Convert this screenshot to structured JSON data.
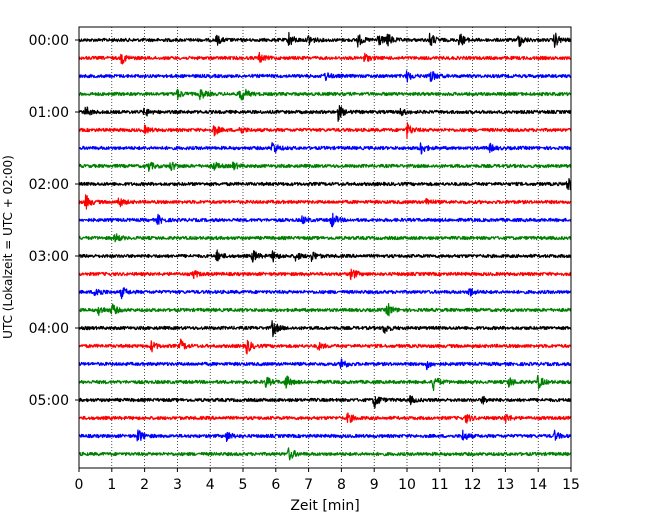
{
  "chart_data": {
    "type": "line",
    "title": "",
    "xlabel": "Zeit  [min]",
    "ylabel": "UTC (Lokalzeit = UTC + 02:00)",
    "xlim": [
      0,
      15
    ],
    "x_ticks": [
      0,
      1,
      2,
      3,
      4,
      5,
      6,
      7,
      8,
      9,
      10,
      11,
      12,
      13,
      14,
      15
    ],
    "x_tick_labels": [
      "0",
      "1",
      "2",
      "3",
      "4",
      "5",
      "6",
      "7",
      "8",
      "9",
      "10",
      "11",
      "12",
      "13",
      "14",
      "15"
    ],
    "y_tick_labels": [
      "00:00",
      "01:00",
      "02:00",
      "03:00",
      "04:00",
      "05:00"
    ],
    "y_tick_rows": [
      0,
      4,
      8,
      12,
      16,
      20
    ],
    "grid": "vertical dotted lines at each minute",
    "legend": "none",
    "row_colors": [
      "#000000",
      "#ff0000",
      "#0000ff",
      "#008000"
    ],
    "rows": [
      {
        "start": "00:00",
        "bursts": [
          [
            4.2,
            0.5
          ],
          [
            6.4,
            0.8
          ],
          [
            7.0,
            0.6
          ],
          [
            8.5,
            0.7
          ],
          [
            9.1,
            0.8
          ],
          [
            9.4,
            0.8
          ],
          [
            10.7,
            0.8
          ],
          [
            11.6,
            0.8
          ],
          [
            13.4,
            0.8
          ],
          [
            14.5,
            0.8
          ]
        ]
      },
      {
        "start": "00:15",
        "bursts": [
          [
            1.3,
            0.6
          ],
          [
            5.5,
            0.5
          ],
          [
            8.7,
            0.5
          ]
        ]
      },
      {
        "start": "00:30",
        "bursts": [
          [
            7.5,
            0.5
          ],
          [
            10.0,
            0.6
          ],
          [
            10.7,
            0.8
          ]
        ]
      },
      {
        "start": "00:45",
        "bursts": [
          [
            3.0,
            0.5
          ],
          [
            3.7,
            0.6
          ],
          [
            4.9,
            0.8
          ],
          [
            5.0,
            0.7
          ]
        ]
      },
      {
        "start": "01:00",
        "bursts": [
          [
            0.2,
            0.6
          ],
          [
            2.0,
            0.5
          ],
          [
            7.9,
            0.9
          ],
          [
            9.8,
            0.4
          ]
        ]
      },
      {
        "start": "01:15",
        "bursts": [
          [
            2.0,
            0.4
          ],
          [
            4.1,
            0.7
          ],
          [
            4.9,
            0.5
          ],
          [
            10.0,
            0.8
          ]
        ]
      },
      {
        "start": "01:30",
        "bursts": [
          [
            5.9,
            0.8
          ],
          [
            10.4,
            0.8
          ],
          [
            12.5,
            0.5
          ]
        ]
      },
      {
        "start": "01:45",
        "bursts": [
          [
            2.1,
            0.6
          ],
          [
            2.8,
            0.5
          ],
          [
            4.1,
            0.5
          ],
          [
            4.7,
            0.4
          ]
        ]
      },
      {
        "start": "02:00",
        "bursts": [
          [
            14.9,
            0.9
          ]
        ]
      },
      {
        "start": "02:15",
        "bursts": [
          [
            0.2,
            0.8
          ],
          [
            1.2,
            0.6
          ],
          [
            10.6,
            0.4
          ]
        ]
      },
      {
        "start": "02:30",
        "bursts": [
          [
            2.4,
            0.5
          ],
          [
            6.8,
            0.4
          ],
          [
            7.7,
            0.9
          ]
        ]
      },
      {
        "start": "02:45",
        "bursts": [
          [
            1.1,
            0.5
          ]
        ]
      },
      {
        "start": "03:00",
        "bursts": [
          [
            4.2,
            0.6
          ],
          [
            5.3,
            0.7
          ],
          [
            5.9,
            0.6
          ],
          [
            6.6,
            0.5
          ],
          [
            7.1,
            0.6
          ]
        ]
      },
      {
        "start": "03:15",
        "bursts": [
          [
            3.5,
            0.4
          ],
          [
            8.3,
            0.7
          ]
        ]
      },
      {
        "start": "03:30",
        "bursts": [
          [
            0.5,
            0.8
          ],
          [
            1.3,
            0.6
          ],
          [
            11.9,
            0.5
          ]
        ]
      },
      {
        "start": "03:45",
        "bursts": [
          [
            0.6,
            0.5
          ],
          [
            1.0,
            0.7
          ],
          [
            9.4,
            0.8
          ]
        ]
      },
      {
        "start": "04:00",
        "bursts": [
          [
            5.9,
            0.9
          ],
          [
            9.3,
            0.6
          ]
        ]
      },
      {
        "start": "04:15",
        "bursts": [
          [
            2.2,
            0.6
          ],
          [
            3.1,
            0.6
          ],
          [
            5.1,
            0.9
          ],
          [
            7.3,
            0.4
          ]
        ]
      },
      {
        "start": "04:30",
        "bursts": [
          [
            8.0,
            0.7
          ],
          [
            10.6,
            0.5
          ]
        ]
      },
      {
        "start": "04:45",
        "bursts": [
          [
            6.3,
            0.8
          ],
          [
            5.7,
            0.6
          ],
          [
            10.8,
            0.9
          ],
          [
            14.0,
            0.8
          ],
          [
            13.1,
            0.6
          ]
        ]
      },
      {
        "start": "05:00",
        "bursts": [
          [
            9.0,
            0.9
          ],
          [
            10.1,
            0.4
          ],
          [
            12.3,
            0.4
          ]
        ]
      },
      {
        "start": "05:15",
        "bursts": [
          [
            8.2,
            0.6
          ],
          [
            11.8,
            0.5
          ],
          [
            13.0,
            0.5
          ]
        ]
      },
      {
        "start": "05:30",
        "bursts": [
          [
            1.8,
            0.8
          ],
          [
            4.5,
            0.5
          ],
          [
            11.7,
            0.6
          ],
          [
            14.5,
            0.5
          ]
        ]
      },
      {
        "start": "05:45",
        "bursts": [
          [
            6.4,
            0.8
          ]
        ]
      }
    ]
  }
}
